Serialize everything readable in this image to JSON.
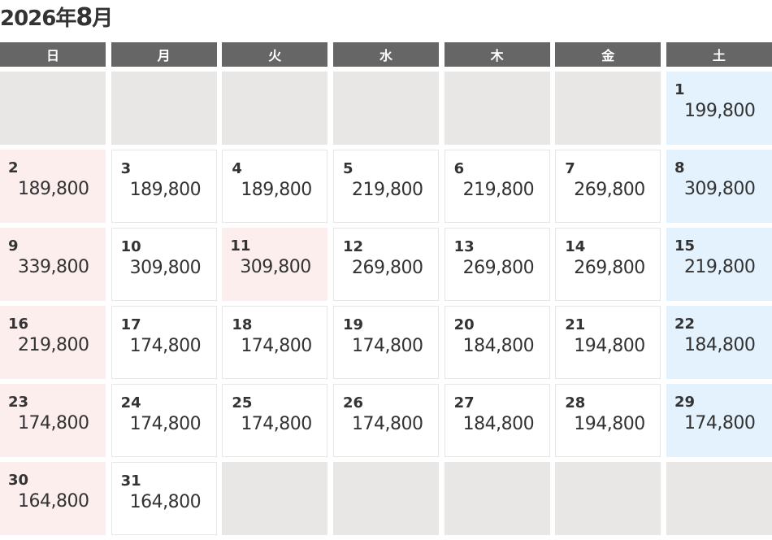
{
  "title": {
    "year": "2026年",
    "month": "8",
    "month_suffix": "月"
  },
  "weekdays": [
    "日",
    "月",
    "火",
    "水",
    "木",
    "金",
    "土"
  ],
  "colors": {
    "header": "#666666",
    "sunday_holiday": "#fdeeee",
    "saturday": "#e3f2fc",
    "empty": "#e8e7e6"
  },
  "leading_blanks": 6,
  "days": [
    {
      "day": "1",
      "price": "199,800"
    },
    {
      "day": "2",
      "price": "189,800"
    },
    {
      "day": "3",
      "price": "189,800"
    },
    {
      "day": "4",
      "price": "189,800"
    },
    {
      "day": "5",
      "price": "219,800"
    },
    {
      "day": "6",
      "price": "219,800"
    },
    {
      "day": "7",
      "price": "269,800"
    },
    {
      "day": "8",
      "price": "309,800"
    },
    {
      "day": "9",
      "price": "339,800"
    },
    {
      "day": "10",
      "price": "309,800"
    },
    {
      "day": "11",
      "price": "309,800",
      "holiday": true
    },
    {
      "day": "12",
      "price": "269,800"
    },
    {
      "day": "13",
      "price": "269,800"
    },
    {
      "day": "14",
      "price": "269,800"
    },
    {
      "day": "15",
      "price": "219,800"
    },
    {
      "day": "16",
      "price": "219,800"
    },
    {
      "day": "17",
      "price": "174,800"
    },
    {
      "day": "18",
      "price": "174,800"
    },
    {
      "day": "19",
      "price": "174,800"
    },
    {
      "day": "20",
      "price": "184,800"
    },
    {
      "day": "21",
      "price": "194,800"
    },
    {
      "day": "22",
      "price": "184,800"
    },
    {
      "day": "23",
      "price": "174,800"
    },
    {
      "day": "24",
      "price": "174,800"
    },
    {
      "day": "25",
      "price": "174,800"
    },
    {
      "day": "26",
      "price": "174,800"
    },
    {
      "day": "27",
      "price": "184,800"
    },
    {
      "day": "28",
      "price": "194,800"
    },
    {
      "day": "29",
      "price": "174,800"
    },
    {
      "day": "30",
      "price": "164,800"
    },
    {
      "day": "31",
      "price": "164,800"
    }
  ]
}
